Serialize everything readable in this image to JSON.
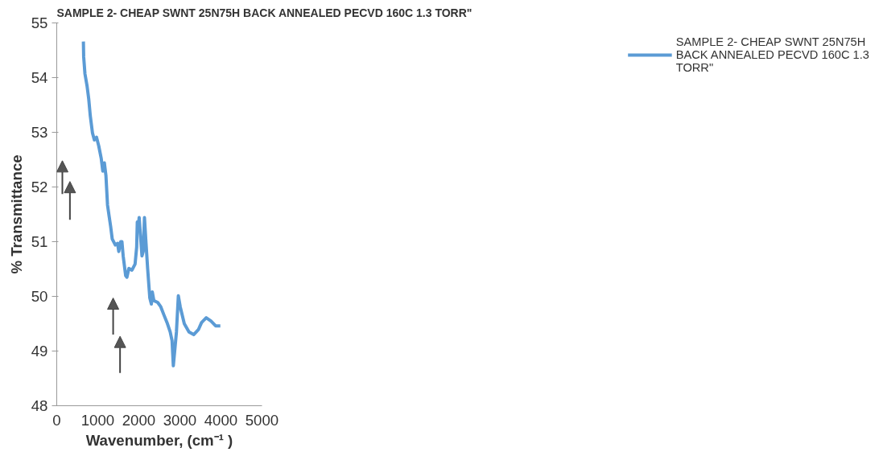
{
  "chart_data": {
    "type": "line",
    "title": "SAMPLE 2- CHEAP SWNT 25N75H BACK ANNEALED PECVD 160C 1.3 TORR\"",
    "xlabel": "Wavenumber, (cm⁻¹ )",
    "ylabel": "% Transmittance",
    "xlim": [
      0,
      5000
    ],
    "xticks": [
      0,
      1000,
      2000,
      3000,
      4000,
      5000
    ],
    "ylim": [
      48,
      55
    ],
    "yticks": [
      48,
      49,
      50,
      51,
      52,
      53,
      54,
      55
    ],
    "grid": false,
    "legend": "right",
    "line_style": "solid",
    "marker": "none",
    "series": [
      {
        "name": "SAMPLE 2- CHEAP SWNT 25N75H BACK ANNEALED PECVD 160C 1.3 TORR\"",
        "color": "#5b9bd5",
        "x": [
          649,
          656,
          687,
          740,
          779,
          817,
          870,
          916,
          969,
          1023,
          1084,
          1122,
          1160,
          1198,
          1237,
          1275,
          1313,
          1351,
          1427,
          1481,
          1511,
          1557,
          1588,
          1618,
          1679,
          1710,
          1756,
          1832,
          1908,
          1947,
          1962,
          1985,
          2008,
          2038,
          2076,
          2107,
          2137,
          2168,
          2214,
          2267,
          2305,
          2328,
          2366,
          2458,
          2534,
          2611,
          2687,
          2763,
          2809,
          2840,
          2878,
          2916,
          2962,
          3008,
          3107,
          3221,
          3336,
          3450,
          3527,
          3641,
          3756,
          3870,
          3985
        ],
        "values": [
          54.66,
          54.38,
          54.07,
          53.84,
          53.61,
          53.3,
          52.99,
          52.86,
          52.91,
          52.75,
          52.52,
          52.29,
          52.44,
          52.21,
          51.67,
          51.47,
          51.28,
          51.05,
          50.94,
          50.97,
          50.82,
          51.0,
          51.0,
          50.74,
          50.38,
          50.35,
          50.51,
          50.48,
          50.59,
          50.9,
          51.36,
          51.28,
          51.44,
          51.13,
          50.74,
          50.82,
          51.44,
          51.05,
          50.51,
          49.97,
          49.86,
          50.08,
          49.92,
          49.89,
          49.81,
          49.66,
          49.52,
          49.35,
          49.19,
          48.73,
          49.04,
          49.35,
          50.01,
          49.81,
          49.5,
          49.35,
          49.3,
          49.39,
          49.52,
          49.61,
          49.55,
          49.46,
          49.46
        ]
      }
    ]
  }
}
